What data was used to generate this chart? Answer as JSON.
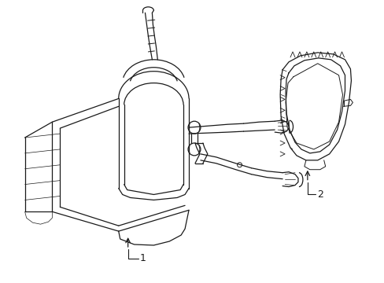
{
  "background_color": "#ffffff",
  "line_color": "#1a1a1a",
  "label_1": "1",
  "label_2": "2",
  "figsize": [
    4.89,
    3.6
  ],
  "dpi": 100
}
